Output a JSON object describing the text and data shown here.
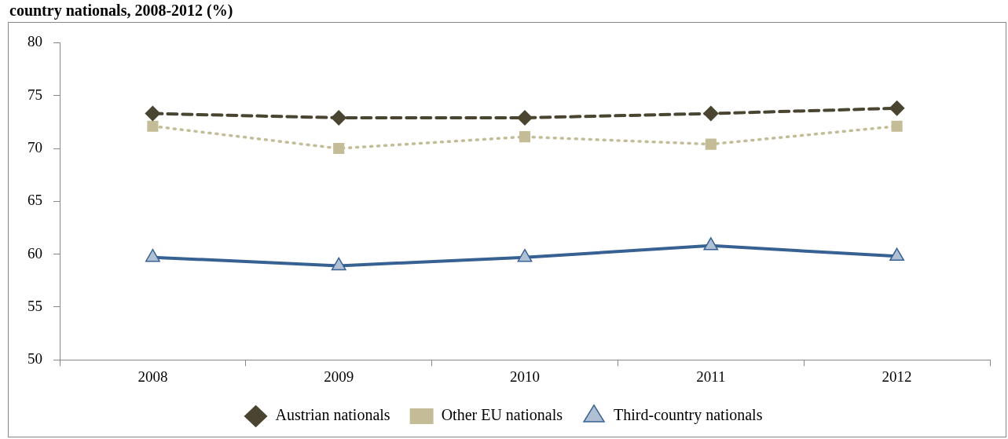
{
  "chart_data": {
    "type": "line",
    "title": "country nationals, 2008-2012 (%)",
    "categories": [
      "2008",
      "2009",
      "2010",
      "2011",
      "2012"
    ],
    "series": [
      {
        "name": "Austrian nationals",
        "color": "#4a4530",
        "values": [
          73.3,
          72.9,
          72.9,
          73.3,
          73.8
        ],
        "marker": "diamond",
        "line_style": "dashed"
      },
      {
        "name": "Other EU nationals",
        "color": "#c4bc96",
        "values": [
          72.1,
          70.0,
          71.1,
          70.4,
          72.1
        ],
        "marker": "square",
        "line_style": "dotted"
      },
      {
        "name": "Third-country nationals",
        "color": "#386193",
        "values": [
          59.7,
          58.9,
          59.7,
          60.8,
          59.8
        ],
        "marker": "triangle",
        "line_style": "solid"
      }
    ],
    "ylim": [
      50,
      80
    ],
    "yticks": [
      50,
      55,
      60,
      65,
      70,
      75,
      80
    ],
    "grid": false,
    "legend": "bottom"
  }
}
